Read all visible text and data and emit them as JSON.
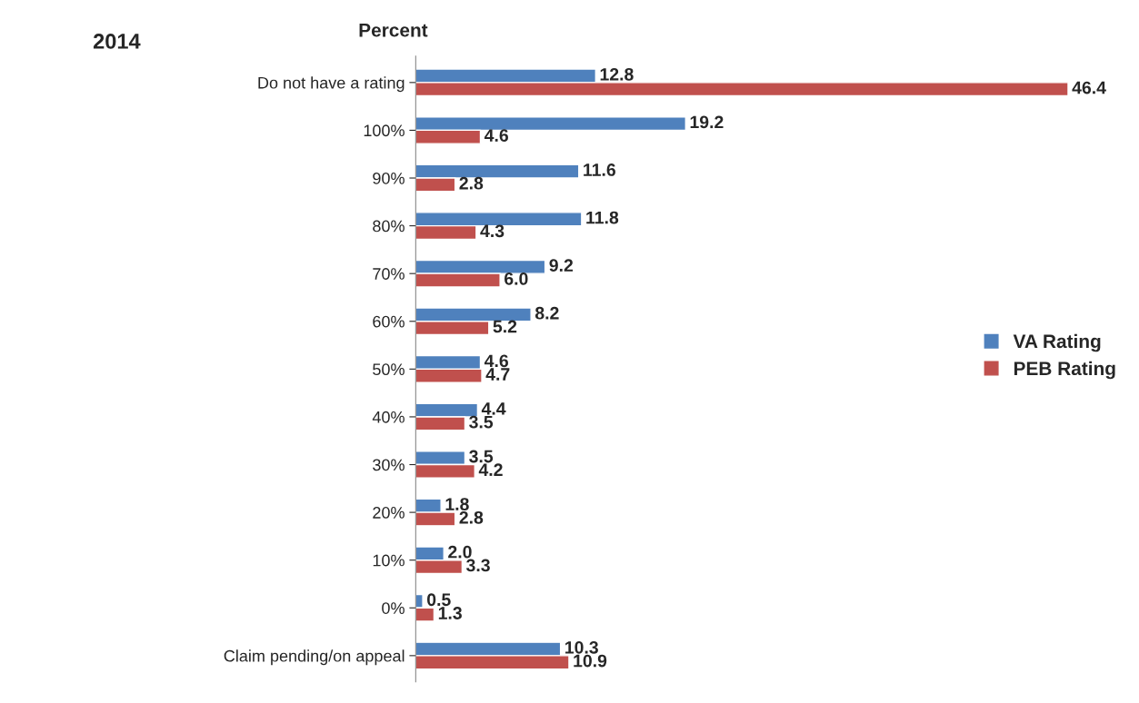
{
  "chart_data": {
    "type": "bar",
    "orientation": "horizontal",
    "title": "2014",
    "xlabel": "Percent",
    "categories": [
      "Do not have a rating",
      "100%",
      "90%",
      "80%",
      "70%",
      "60%",
      "50%",
      "40%",
      "30%",
      "20%",
      "10%",
      "0%",
      "Claim pending/on appeal"
    ],
    "series": [
      {
        "name": "VA Rating",
        "color": "#4f81bd",
        "values": [
          12.8,
          19.2,
          11.6,
          11.8,
          9.2,
          8.2,
          4.6,
          4.4,
          3.5,
          1.8,
          2.0,
          0.5,
          10.3
        ],
        "value_labels": [
          "12.8",
          "19.2",
          "11.6",
          "11.8",
          "9.2",
          "8.2",
          "4.6",
          "4.4",
          "3.5",
          "1.8",
          "2.0",
          "0.5",
          "10.3"
        ]
      },
      {
        "name": "PEB Rating",
        "color": "#c0504d",
        "values": [
          46.4,
          4.6,
          2.8,
          4.3,
          6.0,
          5.2,
          4.7,
          3.5,
          4.2,
          2.8,
          3.3,
          1.3,
          10.9
        ],
        "value_labels": [
          "46.4",
          "4.6",
          "2.8",
          "4.3",
          "6.0",
          "5.2",
          "4.7",
          "3.5",
          "4.2",
          "2.8",
          "3.3",
          "1.3",
          "10.9"
        ]
      }
    ],
    "tick_labels": "y",
    "grid": false,
    "legend": "right"
  }
}
